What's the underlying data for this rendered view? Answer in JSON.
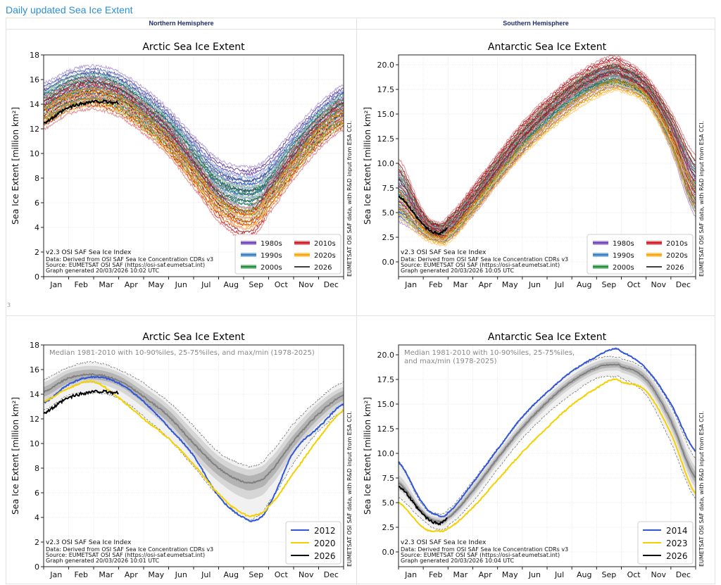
{
  "page": {
    "title": "Daily updated Sea Ice Extent",
    "headers": {
      "north": "Northern Hemisphere",
      "south": "Southern Hemisphere"
    },
    "row_label": "3"
  },
  "common": {
    "months": [
      "Jan",
      "Feb",
      "Mar",
      "Apr",
      "May",
      "Jun",
      "Jul",
      "Aug",
      "Sep",
      "Oct",
      "Nov",
      "Dec"
    ],
    "ylabel": "Sea Ice Extent [million km²]",
    "side_credit": "EUMETSAT OSI SAF data, with R&D input from ESA CCI.",
    "credit_line1": "v2.3 OSI SAF Sea Ice Index",
    "credit_line2": "Data: Derived from OSI SAF Sea Ice Concentration CDRs v3",
    "credit_line3": "Source: EUMETSAT OSI SAF (https://osi-saf.eumetsat.int)"
  },
  "chart_data": [
    {
      "id": "arctic-decades",
      "type": "line",
      "title": "Arctic Sea Ice Extent",
      "xlabel": "",
      "ylabel": "Sea Ice Extent [million km²]",
      "ylim": [
        0,
        18
      ],
      "yticks": [
        "0",
        "2",
        "4",
        "6",
        "8",
        "10",
        "12",
        "14",
        "16",
        "18"
      ],
      "yticks_values": [
        0,
        2,
        4,
        6,
        8,
        10,
        12,
        14,
        16,
        18
      ],
      "grid": true,
      "legend_position": "bottom-right",
      "generated": "Graph generated 20/03/2026 10:02 UTC",
      "x_months": [
        0.0,
        1.0,
        2.0,
        3.0,
        4.0,
        5.0,
        6.0,
        7.0,
        8.0,
        8.5,
        9.0,
        10.0,
        11.0,
        12.0
      ],
      "series": [
        {
          "name": "1980s",
          "color": "#6a3fb5",
          "values": [
            14.6,
            15.6,
            16.0,
            15.5,
            14.2,
            12.5,
            10.3,
            8.4,
            7.8,
            7.9,
            8.6,
            10.8,
            12.9,
            14.4
          ]
        },
        {
          "name": "1990s",
          "color": "#2f7bc4",
          "values": [
            14.3,
            15.3,
            15.7,
            15.2,
            13.8,
            12.1,
            9.8,
            7.7,
            7.0,
            7.1,
            7.9,
            10.3,
            12.5,
            14.0
          ]
        },
        {
          "name": "2000s",
          "color": "#1f8a3a",
          "values": [
            13.9,
            15.0,
            15.3,
            14.8,
            13.4,
            11.7,
            9.3,
            7.0,
            6.2,
            6.3,
            7.2,
            9.8,
            12.1,
            13.6
          ]
        },
        {
          "name": "2010s",
          "color": "#c8141e",
          "values": [
            13.4,
            14.6,
            15.0,
            14.4,
            13.0,
            11.2,
            8.6,
            5.9,
            4.5,
            4.9,
            6.5,
            9.3,
            11.7,
            13.3
          ]
        },
        {
          "name": "2020s",
          "color": "#ffa200",
          "values": [
            13.2,
            14.3,
            14.7,
            14.1,
            12.7,
            10.8,
            8.3,
            5.8,
            4.8,
            5.0,
            6.3,
            9.0,
            11.5,
            13.0
          ]
        },
        {
          "name": "2026",
          "color": "#000000",
          "values": [
            12.5,
            13.7,
            14.2,
            14.1
          ]
        }
      ],
      "legend": [
        "1980s",
        "1990s",
        "2000s",
        "2010s",
        "2020s",
        "2026"
      ]
    },
    {
      "id": "antarctic-decades",
      "type": "line",
      "title": "Antarctic Sea Ice Extent",
      "xlabel": "",
      "ylabel": "Sea Ice Extent [million km²]",
      "ylim": [
        -1.5,
        21
      ],
      "yticks": [
        "0.0",
        "2.5",
        "5.0",
        "7.5",
        "10.0",
        "12.5",
        "15.0",
        "17.5",
        "20.0"
      ],
      "yticks_values": [
        0,
        2.5,
        5,
        7.5,
        10,
        12.5,
        15,
        17.5,
        20
      ],
      "grid": true,
      "legend_position": "bottom-right",
      "generated": "Graph generated 20/03/2026 10:05 UTC",
      "x_months": [
        0.0,
        1.0,
        1.6,
        2.0,
        3.0,
        4.0,
        5.0,
        6.0,
        7.0,
        8.0,
        8.7,
        9.0,
        10.0,
        11.0,
        12.0
      ],
      "series": [
        {
          "name": "1980s",
          "color": "#6a3fb5",
          "values": [
            6.8,
            3.8,
            3.0,
            3.3,
            5.8,
            9.0,
            12.0,
            14.6,
            16.8,
            18.3,
            18.8,
            18.7,
            17.4,
            13.0,
            7.3
          ]
        },
        {
          "name": "1990s",
          "color": "#2f7bc4",
          "values": [
            7.2,
            4.0,
            3.0,
            3.4,
            6.2,
            9.4,
            12.5,
            15.0,
            17.1,
            18.6,
            19.0,
            18.9,
            17.5,
            13.2,
            7.6
          ]
        },
        {
          "name": "2000s",
          "color": "#1f8a3a",
          "values": [
            7.5,
            4.2,
            3.2,
            3.6,
            6.4,
            9.7,
            12.8,
            15.3,
            17.4,
            18.8,
            19.2,
            19.0,
            17.6,
            13.6,
            8.0
          ]
        },
        {
          "name": "2010s",
          "color": "#c8141e",
          "values": [
            8.3,
            4.4,
            3.3,
            3.8,
            6.8,
            10.1,
            13.3,
            15.8,
            17.9,
            19.4,
            20.0,
            19.7,
            18.0,
            14.0,
            8.6
          ]
        },
        {
          "name": "2020s",
          "color": "#ffa200",
          "values": [
            6.0,
            3.1,
            2.3,
            2.6,
            5.4,
            8.5,
            11.4,
            13.7,
            15.8,
            17.3,
            18.0,
            17.9,
            16.6,
            12.4,
            6.6
          ]
        },
        {
          "name": "2026",
          "color": "#000000",
          "values": [
            6.7,
            3.8,
            2.9,
            3.4
          ]
        }
      ],
      "legend": [
        "1980s",
        "1990s",
        "2000s",
        "2010s",
        "2020s",
        "2026"
      ]
    },
    {
      "id": "arctic-median",
      "type": "line",
      "title": "Arctic Sea Ice Extent",
      "annotation": "Median 1981-2010 with 10-90%iles, 25-75%iles, and max/min (1978-2025)",
      "xlabel": "",
      "ylabel": "Sea Ice Extent [million km²]",
      "ylim": [
        0,
        18
      ],
      "yticks": [
        "0",
        "2",
        "4",
        "6",
        "8",
        "10",
        "12",
        "14",
        "16",
        "18"
      ],
      "yticks_values": [
        0,
        2,
        4,
        6,
        8,
        10,
        12,
        14,
        16,
        18
      ],
      "grid": true,
      "legend_position": "bottom-right",
      "generated": "Graph generated 20/03/2026 10:01 UTC",
      "x_months": [
        0.0,
        1.0,
        2.0,
        3.0,
        4.0,
        5.0,
        6.0,
        7.0,
        8.0,
        8.5,
        9.0,
        10.0,
        11.0,
        12.0
      ],
      "median": [
        14.2,
        15.3,
        15.6,
        15.1,
        13.8,
        12.2,
        10.0,
        8.0,
        6.9,
        6.9,
        7.6,
        10.2,
        12.4,
        13.9
      ],
      "band_25_75": [
        [
          13.8,
          14.6
        ],
        [
          14.9,
          15.7
        ],
        [
          15.2,
          16.0
        ],
        [
          14.7,
          15.5
        ],
        [
          13.3,
          14.2
        ],
        [
          11.7,
          12.7
        ],
        [
          9.4,
          10.5
        ],
        [
          7.4,
          8.5
        ],
        [
          6.3,
          7.5
        ],
        [
          6.3,
          7.5
        ],
        [
          7.0,
          8.2
        ],
        [
          9.7,
          10.7
        ],
        [
          12.0,
          12.9
        ],
        [
          13.5,
          14.3
        ]
      ],
      "band_10_90": [
        [
          13.4,
          15.0
        ],
        [
          14.6,
          16.0
        ],
        [
          14.9,
          16.3
        ],
        [
          14.3,
          15.8
        ],
        [
          12.9,
          14.6
        ],
        [
          11.2,
          13.1
        ],
        [
          8.9,
          11.0
        ],
        [
          6.9,
          9.0
        ],
        [
          5.6,
          8.0
        ],
        [
          5.6,
          8.0
        ],
        [
          6.4,
          8.7
        ],
        [
          9.2,
          11.2
        ],
        [
          11.6,
          13.3
        ],
        [
          13.1,
          14.6
        ]
      ],
      "max": [
        15.2,
        16.2,
        16.6,
        16.0,
        14.9,
        13.4,
        11.4,
        9.3,
        8.3,
        8.2,
        9.1,
        11.6,
        13.6,
        15.0
      ],
      "min": [
        12.7,
        13.9,
        14.1,
        13.7,
        12.2,
        10.4,
        8.1,
        5.7,
        4.0,
        4.0,
        5.2,
        8.4,
        11.0,
        12.6
      ],
      "series": [
        {
          "name": "2012",
          "color": "#3256d8",
          "values": [
            13.3,
            14.8,
            15.4,
            14.9,
            13.4,
            11.3,
            9.0,
            5.7,
            4.0,
            3.8,
            5.0,
            9.3,
            11.3,
            13.2
          ]
        },
        {
          "name": "2020",
          "color": "#f5d000",
          "values": [
            13.4,
            14.5,
            15.0,
            13.7,
            12.0,
            10.4,
            8.3,
            5.9,
            4.3,
            4.2,
            4.9,
            7.6,
            10.4,
            12.7
          ]
        },
        {
          "name": "2026",
          "color": "#000000",
          "values": [
            12.5,
            13.7,
            14.2,
            14.1
          ]
        }
      ],
      "legend": [
        "2012",
        "2020",
        "2026"
      ]
    },
    {
      "id": "antarctic-median",
      "type": "line",
      "title": "Antarctic Sea Ice Extent",
      "annotation": "Median 1981-2010 with 10-90%iles, 25-75%iles, and max/min (1978-2025)",
      "annotation_lines": [
        "Median 1981-2010 with 10-90%iles, 25-75%iles,",
        "and max/min (1978-2025)"
      ],
      "xlabel": "",
      "ylabel": "Sea Ice Extent [million km²]",
      "ylim": [
        -1.5,
        21
      ],
      "yticks": [
        "0.0",
        "2.5",
        "5.0",
        "7.5",
        "10.0",
        "12.5",
        "15.0",
        "17.5",
        "20.0"
      ],
      "yticks_values": [
        0,
        2.5,
        5,
        7.5,
        10,
        12.5,
        15,
        17.5,
        20
      ],
      "grid": true,
      "legend_position": "bottom-right",
      "generated": "Graph generated 20/03/2026 10:04 UTC",
      "x_months": [
        0.0,
        1.0,
        1.6,
        2.0,
        3.0,
        4.0,
        5.0,
        6.0,
        7.0,
        8.0,
        8.7,
        9.0,
        10.0,
        11.0,
        12.0
      ],
      "median": [
        7.0,
        4.0,
        3.1,
        3.5,
        6.2,
        9.5,
        12.6,
        15.2,
        17.3,
        18.7,
        19.0,
        18.8,
        17.5,
        13.3,
        7.5
      ],
      "band_25_75": [
        [
          6.7,
          7.3
        ],
        [
          3.8,
          4.2
        ],
        [
          2.9,
          3.3
        ],
        [
          3.3,
          3.7
        ],
        [
          5.9,
          6.5
        ],
        [
          9.2,
          9.8
        ],
        [
          12.3,
          12.9
        ],
        [
          14.9,
          15.5
        ],
        [
          17.0,
          17.6
        ],
        [
          18.4,
          19.0
        ],
        [
          18.7,
          19.3
        ],
        [
          18.5,
          19.1
        ],
        [
          17.1,
          17.9
        ],
        [
          12.8,
          13.8
        ],
        [
          7.0,
          8.1
        ]
      ],
      "band_10_90": [
        [
          6.3,
          7.8
        ],
        [
          3.6,
          4.4
        ],
        [
          2.7,
          3.5
        ],
        [
          3.1,
          3.9
        ],
        [
          5.6,
          6.8
        ],
        [
          8.9,
          10.1
        ],
        [
          12.0,
          13.2
        ],
        [
          14.6,
          15.8
        ],
        [
          16.7,
          17.9
        ],
        [
          18.1,
          19.3
        ],
        [
          18.4,
          19.6
        ],
        [
          18.2,
          19.4
        ],
        [
          16.8,
          18.2
        ],
        [
          12.4,
          14.3
        ],
        [
          6.5,
          8.6
        ]
      ],
      "max": [
        9.0,
        4.7,
        3.9,
        4.3,
        7.2,
        10.5,
        13.6,
        16.2,
        18.3,
        19.6,
        19.8,
        19.6,
        18.4,
        14.8,
        9.5
      ],
      "min": [
        5.5,
        3.2,
        2.3,
        2.7,
        5.1,
        8.4,
        11.5,
        14.0,
        16.0,
        17.6,
        17.8,
        17.6,
        15.9,
        11.1,
        5.4
      ],
      "series": [
        {
          "name": "2014",
          "color": "#3256d8",
          "values": [
            9.1,
            4.9,
            3.7,
            4.0,
            7.0,
            10.4,
            13.7,
            16.2,
            18.3,
            19.8,
            20.6,
            20.3,
            18.6,
            15.0,
            10.2
          ]
        },
        {
          "name": "2023",
          "color": "#f5d000",
          "values": [
            5.0,
            2.5,
            2.1,
            2.4,
            4.5,
            7.3,
            10.1,
            12.6,
            14.9,
            16.6,
            17.5,
            17.2,
            16.3,
            12.0,
            5.9
          ]
        },
        {
          "name": "2026",
          "color": "#000000",
          "values": [
            6.7,
            3.8,
            2.9,
            3.4
          ]
        }
      ],
      "legend": [
        "2014",
        "2023",
        "2026"
      ]
    }
  ]
}
